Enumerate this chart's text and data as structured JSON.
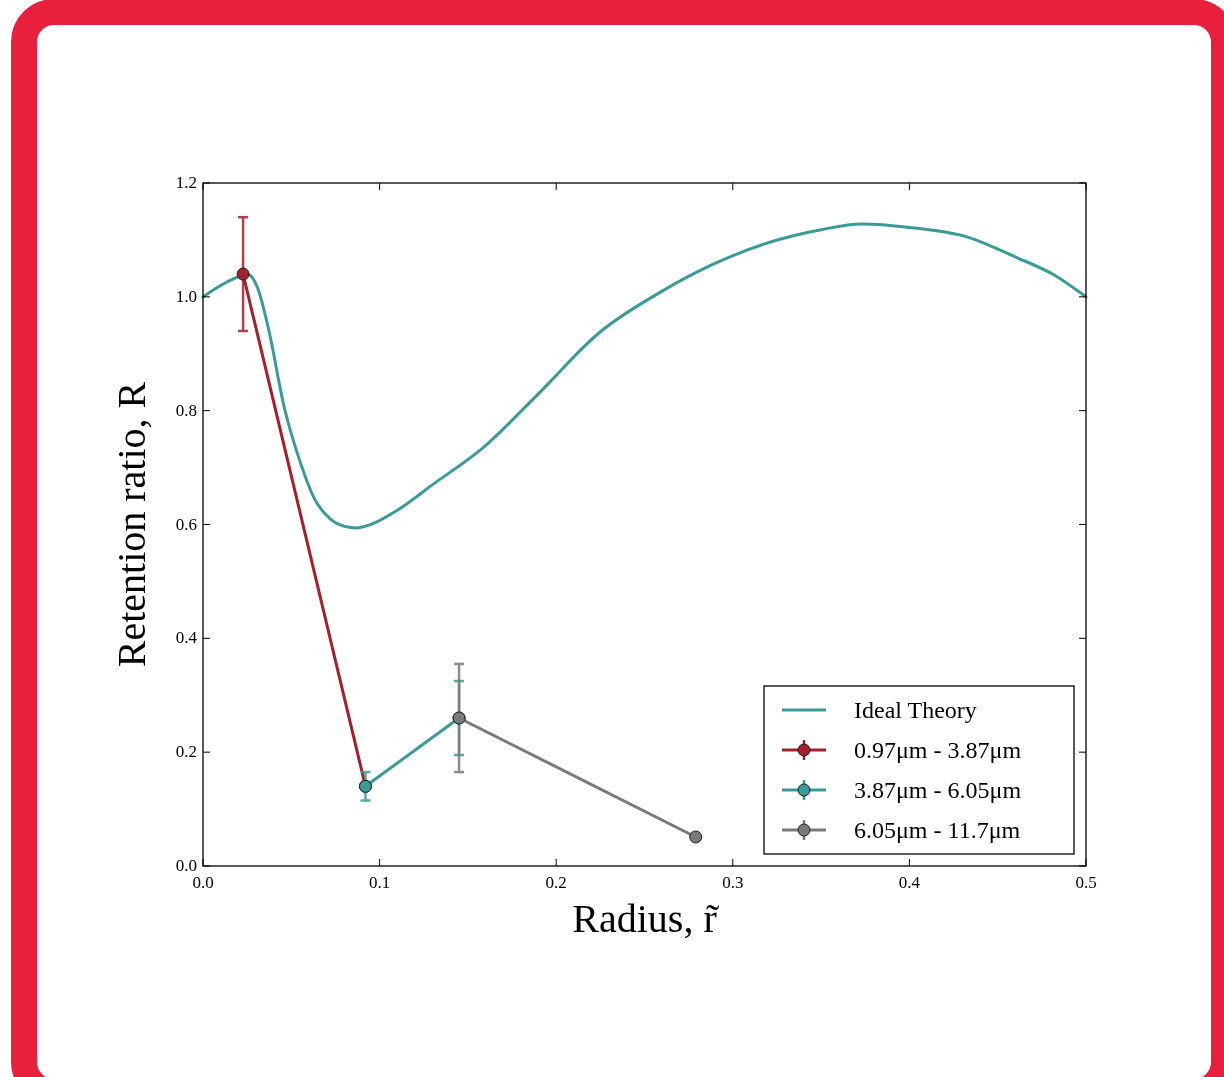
{
  "chart_data": {
    "type": "line",
    "xlabel": "Radius, r̃",
    "ylabel": "Retention ratio, R",
    "xlim": [
      0,
      0.5
    ],
    "ylim": [
      0,
      1.2
    ],
    "xticks": [
      {
        "value": 0,
        "label": "0.0"
      },
      0.1,
      0.2,
      0.3,
      0.4,
      {
        "value": 0.5,
        "label": "0.5"
      }
    ],
    "yticks": [
      {
        "value": 0,
        "label": "0.0"
      },
      0.2,
      0.4,
      0.6,
      0.8,
      {
        "value": 1,
        "label": "1.0"
      },
      1.2
    ],
    "grid": false,
    "legend": "bottom right",
    "marker": "circle",
    "line_style": "solid",
    "series": [
      {
        "name": "Ideal Theory",
        "marker": "none",
        "color": "#3a9a98",
        "x": [
          0,
          0.01,
          0.02,
          0.025,
          0.031,
          0.037,
          0.046,
          0.055,
          0.063,
          0.072,
          0.08,
          0.087,
          0.095,
          0.11,
          0.13,
          0.159,
          0.19,
          0.224,
          0.26,
          0.288,
          0.32,
          0.35,
          0.373,
          0.4,
          0.433,
          0.46,
          0.481,
          0.5
        ],
        "values": [
          1.0,
          1.02,
          1.035,
          1.04,
          1.015,
          0.945,
          0.806,
          0.71,
          0.646,
          0.61,
          0.597,
          0.594,
          0.6,
          0.625,
          0.67,
          0.736,
          0.83,
          0.936,
          1.01,
          1.056,
          1.095,
          1.118,
          1.128,
          1.122,
          1.105,
          1.07,
          1.04,
          1.0
        ]
      },
      {
        "name": "0.97μm - 3.87μm",
        "color": "#a3202a",
        "x": [
          0.0227,
          0.092
        ],
        "values": [
          1.04,
          0.14
        ],
        "errors": [
          0.1,
          null
        ]
      },
      {
        "name": "3.87μm - 6.05μm",
        "color": "#3a9a98",
        "x": [
          0.092,
          0.145
        ],
        "values": [
          0.14,
          0.26
        ],
        "errors": [
          0.025,
          0.065
        ]
      },
      {
        "name": "6.05μm - 11.7μm",
        "color": "#7a7a7a",
        "x": [
          0.145,
          0.279
        ],
        "values": [
          0.26,
          0.051
        ],
        "errors": [
          0.095,
          null
        ]
      }
    ]
  }
}
